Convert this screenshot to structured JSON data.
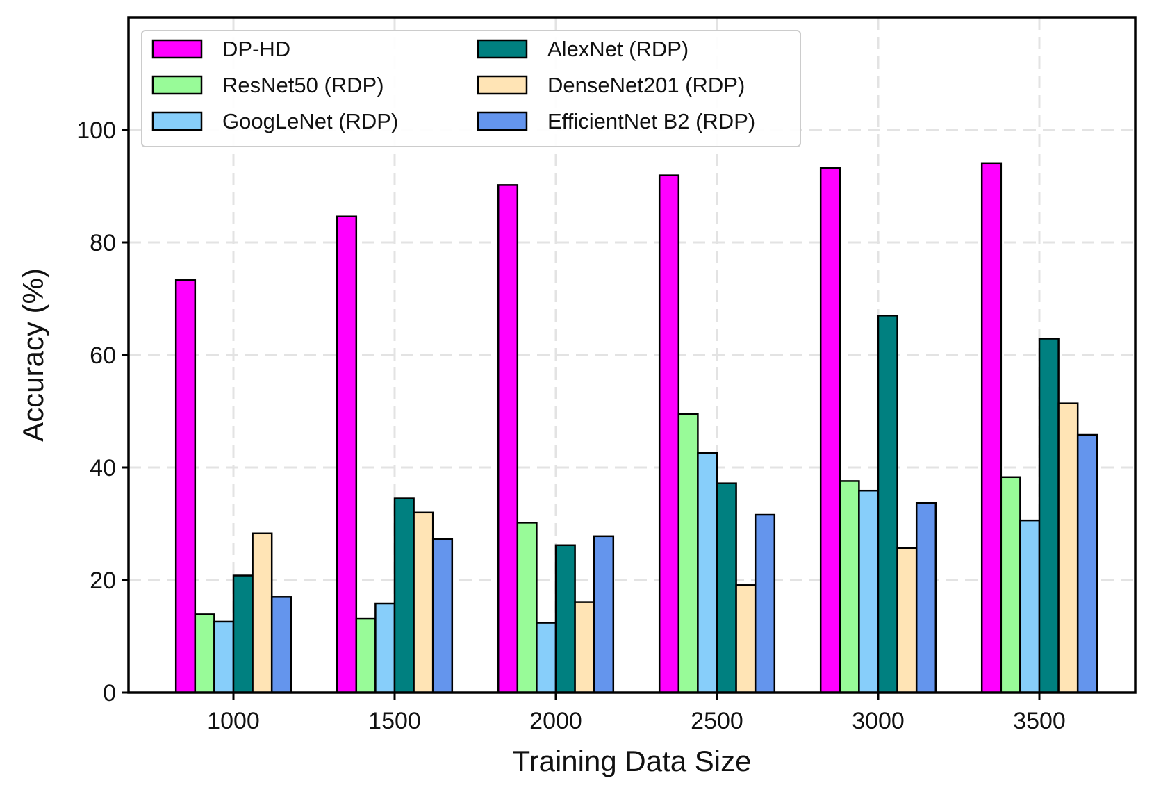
{
  "chart_data": {
    "type": "bar",
    "title": "",
    "xlabel": "Training Data Size",
    "ylabel": "Accuracy (%)",
    "ylim": [
      0,
      120
    ],
    "yticks": [
      0,
      20,
      40,
      60,
      80,
      100
    ],
    "grid": true,
    "legend_position": "top-left",
    "categories": [
      "1000",
      "1500",
      "2000",
      "2500",
      "3000",
      "3500"
    ],
    "series": [
      {
        "name": "DP-HD",
        "color": "#ff00ff",
        "values": [
          73.3,
          84.6,
          90.2,
          91.9,
          93.2,
          94.1
        ]
      },
      {
        "name": "ResNet50 (RDP)",
        "color": "#98fb98",
        "values": [
          13.9,
          13.2,
          30.2,
          49.5,
          37.6,
          38.3
        ]
      },
      {
        "name": "GoogLeNet (RDP)",
        "color": "#87cefa",
        "values": [
          12.6,
          15.8,
          12.4,
          42.6,
          35.9,
          30.6
        ]
      },
      {
        "name": "AlexNet (RDP)",
        "color": "#008080",
        "values": [
          20.8,
          34.5,
          26.2,
          37.2,
          67.0,
          62.9
        ]
      },
      {
        "name": "DenseNet201 (RDP)",
        "color": "#ffe4b5",
        "values": [
          28.3,
          32.0,
          16.1,
          19.1,
          25.7,
          51.4
        ]
      },
      {
        "name": "EfficientNet B2 (RDP)",
        "color": "#6495ed",
        "values": [
          17.0,
          27.3,
          27.8,
          31.6,
          33.7,
          45.8
        ]
      }
    ]
  }
}
